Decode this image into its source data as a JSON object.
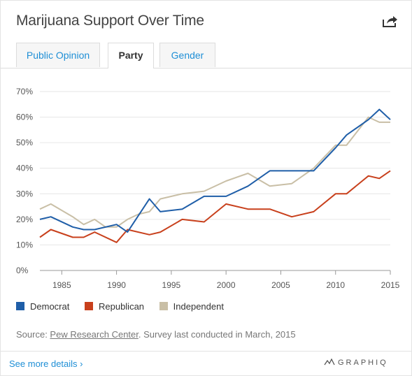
{
  "header": {
    "title": "Marijuana Support Over Time",
    "share_icon": "share-arrow-icon"
  },
  "tabs": [
    {
      "label": "Public Opinion",
      "active": false
    },
    {
      "label": "Party",
      "active": true
    },
    {
      "label": "Gender",
      "active": false
    }
  ],
  "chart_data": {
    "type": "line",
    "title": "",
    "xlabel": "",
    "ylabel": "",
    "xlim": [
      1983,
      2015
    ],
    "ylim": [
      0,
      70
    ],
    "x_ticks": [
      1985,
      1990,
      1995,
      2000,
      2005,
      2010,
      2015
    ],
    "y_ticks": [
      0,
      10,
      20,
      30,
      40,
      50,
      60,
      70
    ],
    "y_tick_labels": [
      "0%",
      "10%",
      "20%",
      "30%",
      "40%",
      "50%",
      "60%",
      "70%"
    ],
    "grid": "horizontal",
    "legend_position": "bottom",
    "series": [
      {
        "name": "Democrat",
        "color": "#1f5ea8",
        "points": [
          [
            1983,
            20
          ],
          [
            1984,
            21
          ],
          [
            1986,
            17
          ],
          [
            1987,
            16
          ],
          [
            1988,
            16
          ],
          [
            1990,
            18
          ],
          [
            1991,
            15
          ],
          [
            1993,
            28
          ],
          [
            1994,
            23
          ],
          [
            1996,
            24
          ],
          [
            1998,
            29
          ],
          [
            2000,
            29
          ],
          [
            2002,
            33
          ],
          [
            2004,
            39
          ],
          [
            2006,
            39
          ],
          [
            2008,
            39
          ],
          [
            2010,
            48
          ],
          [
            2011,
            53
          ],
          [
            2013,
            59
          ],
          [
            2014,
            63
          ],
          [
            2015,
            59
          ]
        ]
      },
      {
        "name": "Republican",
        "color": "#c8401c",
        "points": [
          [
            1983,
            13
          ],
          [
            1984,
            16
          ],
          [
            1986,
            13
          ],
          [
            1987,
            13
          ],
          [
            1988,
            15
          ],
          [
            1990,
            11
          ],
          [
            1991,
            16
          ],
          [
            1993,
            14
          ],
          [
            1994,
            15
          ],
          [
            1996,
            20
          ],
          [
            1998,
            19
          ],
          [
            2000,
            26
          ],
          [
            2002,
            24
          ],
          [
            2004,
            24
          ],
          [
            2006,
            21
          ],
          [
            2008,
            23
          ],
          [
            2010,
            30
          ],
          [
            2011,
            30
          ],
          [
            2013,
            37
          ],
          [
            2014,
            36
          ],
          [
            2015,
            39
          ]
        ]
      },
      {
        "name": "Independent",
        "color": "#c9bfa6",
        "points": [
          [
            1983,
            24
          ],
          [
            1984,
            26
          ],
          [
            1986,
            21
          ],
          [
            1987,
            18
          ],
          [
            1988,
            20
          ],
          [
            1989,
            17
          ],
          [
            1990,
            17
          ],
          [
            1991,
            20
          ],
          [
            1992,
            22
          ],
          [
            1993,
            23
          ],
          [
            1994,
            28
          ],
          [
            1996,
            30
          ],
          [
            1998,
            31
          ],
          [
            2000,
            35
          ],
          [
            2002,
            38
          ],
          [
            2004,
            33
          ],
          [
            2006,
            34
          ],
          [
            2008,
            40
          ],
          [
            2010,
            49
          ],
          [
            2011,
            49
          ],
          [
            2013,
            60
          ],
          [
            2014,
            58
          ],
          [
            2015,
            58
          ]
        ]
      }
    ]
  },
  "source": {
    "prefix": "Source: ",
    "link_text": "Pew Research Center",
    "suffix": ". Survey last conducted in March, 2015"
  },
  "footer": {
    "details_link": "See more details ›",
    "brand": "GRAPHIQ"
  }
}
